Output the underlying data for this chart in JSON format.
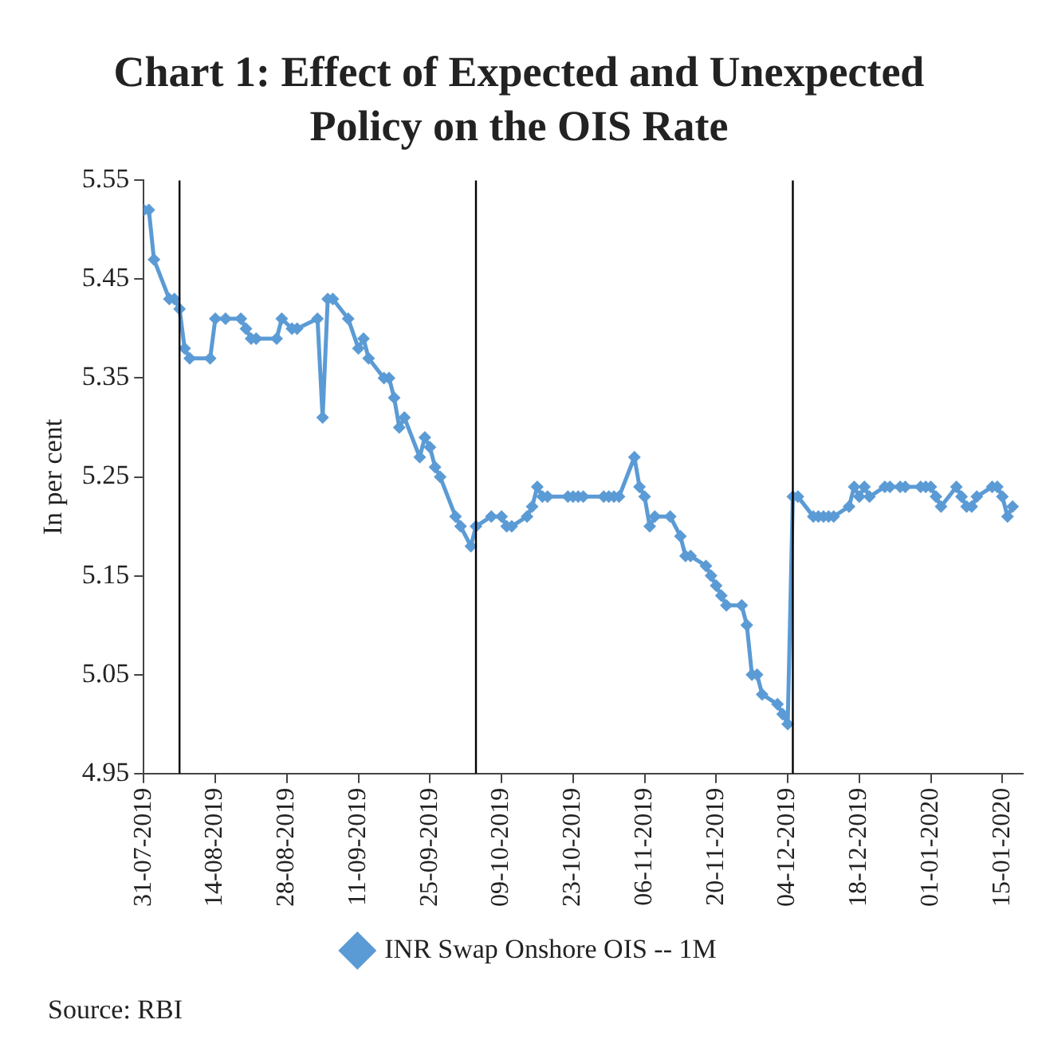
{
  "chart_data": {
    "type": "line",
    "title": "Chart 1: Effect of Expected and Unexpected Policy on the OIS Rate",
    "ylabel": "In per cent",
    "x": [
      "2019-07-31",
      "2019-08-01",
      "2019-08-02",
      "2019-08-05",
      "2019-08-06",
      "2019-08-07",
      "2019-08-08",
      "2019-08-09",
      "2019-08-13",
      "2019-08-14",
      "2019-08-16",
      "2019-08-19",
      "2019-08-20",
      "2019-08-21",
      "2019-08-22",
      "2019-08-26",
      "2019-08-27",
      "2019-08-29",
      "2019-08-30",
      "2019-09-03",
      "2019-09-04",
      "2019-09-05",
      "2019-09-06",
      "2019-09-09",
      "2019-09-11",
      "2019-09-12",
      "2019-09-13",
      "2019-09-16",
      "2019-09-17",
      "2019-09-18",
      "2019-09-19",
      "2019-09-20",
      "2019-09-23",
      "2019-09-24",
      "2019-09-25",
      "2019-09-26",
      "2019-09-27",
      "2019-09-30",
      "2019-10-01",
      "2019-10-03",
      "2019-10-04",
      "2019-10-07",
      "2019-10-09",
      "2019-10-10",
      "2019-10-11",
      "2019-10-14",
      "2019-10-15",
      "2019-10-16",
      "2019-10-17",
      "2019-10-18",
      "2019-10-22",
      "2019-10-23",
      "2019-10-24",
      "2019-10-25",
      "2019-10-29",
      "2019-10-30",
      "2019-10-31",
      "2019-11-01",
      "2019-11-04",
      "2019-11-05",
      "2019-11-06",
      "2019-11-07",
      "2019-11-08",
      "2019-11-11",
      "2019-11-13",
      "2019-11-14",
      "2019-11-15",
      "2019-11-18",
      "2019-11-19",
      "2019-11-20",
      "2019-11-21",
      "2019-11-22",
      "2019-11-25",
      "2019-11-26",
      "2019-11-27",
      "2019-11-28",
      "2019-11-29",
      "2019-12-02",
      "2019-12-03",
      "2019-12-04",
      "2019-12-05",
      "2019-12-06",
      "2019-12-09",
      "2019-12-10",
      "2019-12-11",
      "2019-12-12",
      "2019-12-13",
      "2019-12-16",
      "2019-12-17",
      "2019-12-18",
      "2019-12-19",
      "2019-12-20",
      "2019-12-23",
      "2019-12-24",
      "2019-12-26",
      "2019-12-27",
      "2019-12-30",
      "2019-12-31",
      "2020-01-01",
      "2020-01-02",
      "2020-01-03",
      "2020-01-06",
      "2020-01-07",
      "2020-01-08",
      "2020-01-09",
      "2020-01-10",
      "2020-01-13",
      "2020-01-14",
      "2020-01-15",
      "2020-01-16",
      "2020-01-17"
    ],
    "series": [
      {
        "name": "INR Swap Onshore OIS -- 1M",
        "color": "#5b9bd5",
        "values": [
          5.52,
          5.52,
          5.47,
          5.43,
          5.43,
          5.42,
          5.38,
          5.37,
          5.37,
          5.41,
          5.41,
          5.41,
          5.4,
          5.39,
          5.39,
          5.39,
          5.41,
          5.4,
          5.4,
          5.41,
          5.31,
          5.43,
          5.43,
          5.41,
          5.38,
          5.39,
          5.37,
          5.35,
          5.35,
          5.33,
          5.3,
          5.31,
          5.27,
          5.29,
          5.28,
          5.26,
          5.25,
          5.21,
          5.2,
          5.18,
          5.2,
          5.21,
          5.21,
          5.2,
          5.2,
          5.21,
          5.22,
          5.24,
          5.23,
          5.23,
          5.23,
          5.23,
          5.23,
          5.23,
          5.23,
          5.23,
          5.23,
          5.23,
          5.27,
          5.24,
          5.23,
          5.2,
          5.21,
          5.21,
          5.19,
          5.17,
          5.17,
          5.16,
          5.15,
          5.14,
          5.13,
          5.12,
          5.12,
          5.1,
          5.05,
          5.05,
          5.03,
          5.02,
          5.01,
          5.0,
          5.23,
          5.23,
          5.21,
          5.21,
          5.21,
          5.21,
          5.21,
          5.22,
          5.24,
          5.23,
          5.24,
          5.23,
          5.24,
          5.24,
          5.24,
          5.24,
          5.24,
          5.24,
          5.24,
          5.23,
          5.22,
          5.24,
          5.23,
          5.22,
          5.22,
          5.23,
          5.24,
          5.24,
          5.23,
          5.21,
          5.22
        ]
      }
    ],
    "xlim": [
      "2019-07-31",
      "2020-01-19"
    ],
    "xticks": [
      {
        "value": "2019-07-31",
        "label": "31-07-2019"
      },
      {
        "value": "2019-08-14",
        "label": "14-08-2019"
      },
      {
        "value": "2019-08-28",
        "label": "28-08-2019"
      },
      {
        "value": "2019-09-11",
        "label": "11-09-2019"
      },
      {
        "value": "2019-09-25",
        "label": "25-09-2019"
      },
      {
        "value": "2019-10-09",
        "label": "09-10-2019"
      },
      {
        "value": "2019-10-23",
        "label": "23-10-2019"
      },
      {
        "value": "2019-11-06",
        "label": "06-11-2019"
      },
      {
        "value": "2019-11-20",
        "label": "20-11-2019"
      },
      {
        "value": "2019-12-04",
        "label": "04-12-2019"
      },
      {
        "value": "2019-12-18",
        "label": "18-12-2019"
      },
      {
        "value": "2020-01-01",
        "label": "01-01-2020"
      },
      {
        "value": "2020-01-15",
        "label": "15-01-2020"
      }
    ],
    "ylim": [
      4.95,
      5.55
    ],
    "yticks": [
      {
        "value": 4.95,
        "label": "4.95"
      },
      {
        "value": 5.05,
        "label": "5.05"
      },
      {
        "value": 5.15,
        "label": "5.15"
      },
      {
        "value": 5.25,
        "label": "5.25"
      },
      {
        "value": 5.35,
        "label": "5.35"
      },
      {
        "value": 5.45,
        "label": "5.45"
      },
      {
        "value": 5.55,
        "label": "5.55"
      }
    ],
    "ref_lines": [
      {
        "axis": "x",
        "value": "2019-08-07",
        "color": "#000000"
      },
      {
        "axis": "x",
        "value": "2019-10-04",
        "color": "#000000"
      },
      {
        "axis": "x",
        "value": "2019-12-05",
        "color": "#000000"
      }
    ],
    "marker": "diamond",
    "legend": "bottom",
    "grid": false,
    "annotations": [
      "Source: RBI"
    ]
  }
}
